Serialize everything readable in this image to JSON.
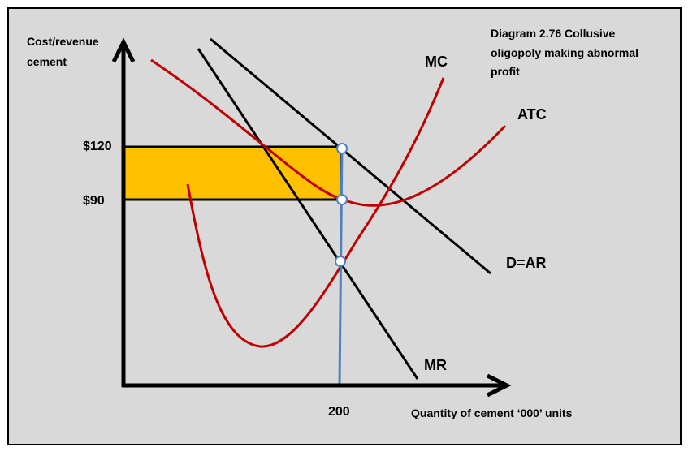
{
  "title_lines": [
    "Diagram 2.76 Collusive",
    "oligopoly making abnormal",
    "profit"
  ],
  "y_axis_label": [
    "Cost/revenue",
    "cement"
  ],
  "x_axis_label": "Quantity of cement ‘000’ units",
  "price_labels": {
    "p120": "$120",
    "p90": "$90"
  },
  "quantity_label": "200",
  "curve_labels": {
    "mc": "MC",
    "atc": "ATC",
    "dar": "D=AR",
    "mr": "MR"
  },
  "colors": {
    "background": "#d9d9d9",
    "profit_area": "#ffc000",
    "cost_curves": "#c00000",
    "quantity_line": "#4f81bd",
    "revenue_curves": "#000000"
  },
  "chart_data": {
    "type": "diagram",
    "title": "Diagram 2.76 Collusive oligopoly making abnormal profit",
    "xlabel": "Quantity of cement ‘000’ units",
    "ylabel": "Cost/revenue cement",
    "equilibrium": {
      "quantity": 200,
      "price": 120,
      "average_total_cost": 90
    },
    "shaded_region": "abnormal profit between $90 and $120 up to quantity 200",
    "curves": [
      "MC",
      "ATC",
      "D=AR",
      "MR"
    ]
  }
}
